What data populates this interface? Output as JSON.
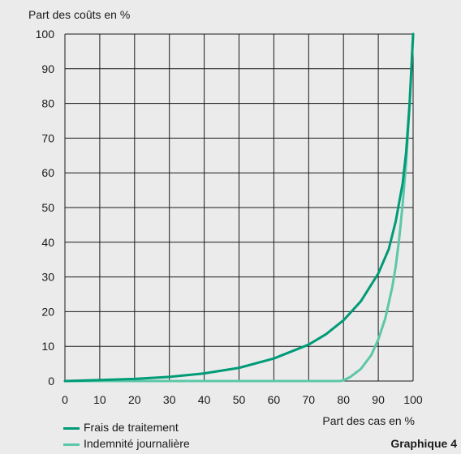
{
  "chart_data": {
    "type": "line",
    "ylabel": "Part des coûts en %",
    "xlabel": "Part des cas en %",
    "caption": "Graphique 4",
    "xlim": [
      0,
      100
    ],
    "ylim": [
      0,
      100
    ],
    "xticks": [
      0,
      10,
      20,
      30,
      40,
      50,
      60,
      70,
      80,
      90,
      100
    ],
    "yticks": [
      0,
      10,
      20,
      30,
      40,
      50,
      60,
      70,
      80,
      90,
      100
    ],
    "grid": true,
    "legend_position": "bottom-left",
    "series": [
      {
        "name": "Frais de traitement",
        "color": "#009b77",
        "x": [
          0,
          10,
          20,
          30,
          40,
          50,
          60,
          70,
          75,
          80,
          85,
          90,
          93,
          95,
          97,
          98,
          99,
          99.5,
          100
        ],
        "y": [
          0,
          0.3,
          0.6,
          1.2,
          2.2,
          3.8,
          6.5,
          10.5,
          13.5,
          17.5,
          23,
          31,
          38,
          46,
          57,
          66,
          80,
          90,
          100
        ]
      },
      {
        "name": "Indemnité journalière",
        "color": "#5cc7a8",
        "x": [
          0,
          79,
          80,
          82,
          85,
          88,
          90,
          92,
          94,
          95,
          96,
          97,
          98,
          99,
          99.5,
          100
        ],
        "y": [
          0,
          0,
          0.2,
          1.2,
          3.5,
          7.5,
          12,
          18,
          27,
          33,
          41,
          51,
          63,
          80,
          90,
          100
        ]
      }
    ]
  }
}
